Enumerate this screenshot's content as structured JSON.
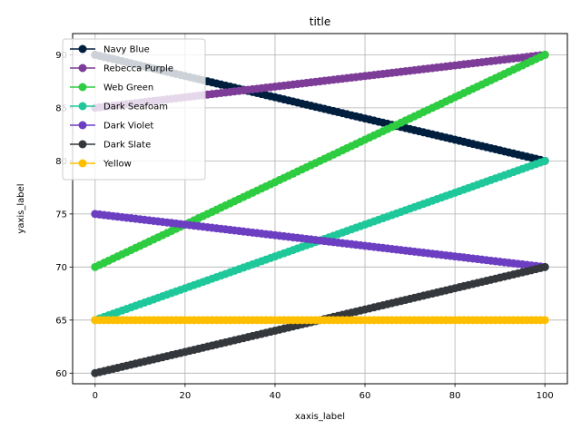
{
  "chart_data": {
    "type": "line",
    "title": "title",
    "xlabel": "xaxis_label",
    "ylabel": "yaxis_label",
    "xlim": [
      -5,
      105
    ],
    "ylim": [
      59,
      92
    ],
    "xticks": [
      0,
      20,
      40,
      60,
      80,
      100
    ],
    "yticks": [
      60,
      65,
      70,
      75,
      80,
      85,
      90
    ],
    "grid": true,
    "legend_position": "top-left",
    "x_range": [
      0,
      100
    ],
    "x_step": 1,
    "series": [
      {
        "name": "Navy Blue",
        "color": "#001f3f",
        "start": 90,
        "end": 80
      },
      {
        "name": "Rebecca Purple",
        "color": "#7d3c98",
        "start": 85,
        "end": 90
      },
      {
        "name": "Web Green",
        "color": "#2ecc40",
        "start": 70,
        "end": 90
      },
      {
        "name": "Dark Seafoam",
        "color": "#1fc89a",
        "start": 65,
        "end": 80
      },
      {
        "name": "Dark Violet",
        "color": "#6c3ec1",
        "start": 75,
        "end": 70
      },
      {
        "name": "Dark Slate",
        "color": "#34383c",
        "start": 60,
        "end": 70
      },
      {
        "name": "Yellow",
        "color": "#ffbf00",
        "start": 65,
        "end": 65
      }
    ]
  }
}
